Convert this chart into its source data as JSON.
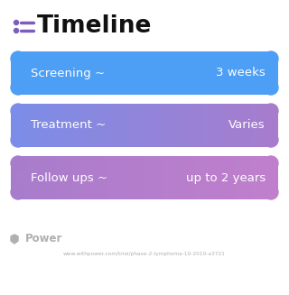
{
  "title": "Timeline",
  "background_color": "#ffffff",
  "title_color": "#111111",
  "title_fontsize": 19,
  "icon_color": "#7c5cbf",
  "rows": [
    {
      "label": "Screening ~",
      "value": "3 weeks",
      "color_left": "#4d9ef5",
      "color_right": "#4d9ef5"
    },
    {
      "label": "Treatment ~",
      "value": "Varies",
      "color_left": "#7b8de8",
      "color_right": "#a87ccc"
    },
    {
      "label": "Follow ups ~",
      "value": "up to 2 years",
      "color_left": "#a87ccc",
      "color_right": "#c07fcc"
    }
  ],
  "footer_logo_text": "Power",
  "footer_url": "www.withpower.com/trial/phase-2-lymphoma-10-2010-a3721",
  "footer_color": "#b0b0b0"
}
